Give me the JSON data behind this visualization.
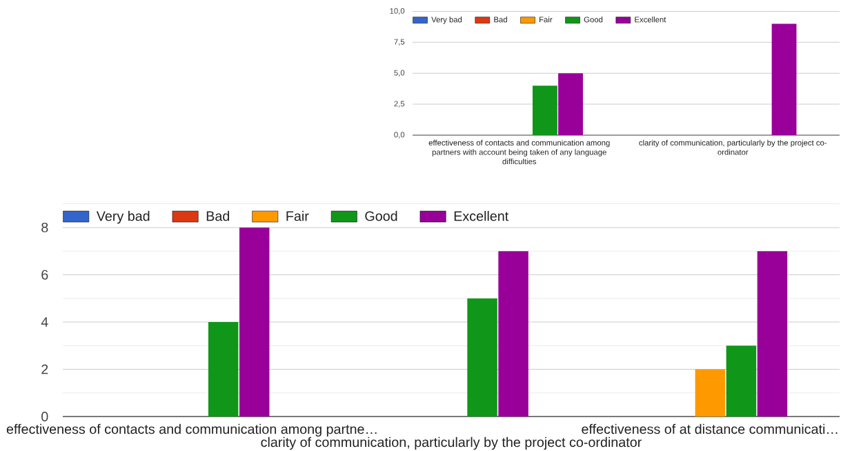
{
  "chart_data": [
    {
      "type": "bar",
      "categories": [
        "effectiveness of contacts and communication among partners with account being taken of any language difficulties",
        "clarity of communication, particularly by the project co-ordinator"
      ],
      "series": [
        {
          "name": "Very bad",
          "color": "#3366cc",
          "values": [
            0,
            0
          ]
        },
        {
          "name": "Bad",
          "color": "#dc3912",
          "values": [
            0,
            0
          ]
        },
        {
          "name": "Fair",
          "color": "#ff9900",
          "values": [
            0,
            0
          ]
        },
        {
          "name": "Good",
          "color": "#109618",
          "values": [
            4,
            0
          ]
        },
        {
          "name": "Excellent",
          "color": "#990099",
          "values": [
            5,
            9
          ]
        }
      ],
      "ylim": [
        0,
        10
      ],
      "yticks": [
        {
          "value": 0,
          "label": "0,0"
        },
        {
          "value": 2.5,
          "label": "2,5"
        },
        {
          "value": 5,
          "label": "5,0"
        },
        {
          "value": 7.5,
          "label": "7,5"
        },
        {
          "value": 10,
          "label": "10,0"
        }
      ],
      "grid": "y",
      "legend": "top left"
    },
    {
      "type": "bar",
      "categories": [
        "effectiveness of contacts and communication among partne…",
        "clarity of communication, particularly by the project co-ordinator",
        "effectiveness of at distance communicati…"
      ],
      "series": [
        {
          "name": "Very bad",
          "color": "#3366cc",
          "values": [
            0,
            0,
            0
          ]
        },
        {
          "name": "Bad",
          "color": "#dc3912",
          "values": [
            0,
            0,
            0
          ]
        },
        {
          "name": "Fair",
          "color": "#ff9900",
          "values": [
            0,
            0,
            2
          ]
        },
        {
          "name": "Good",
          "color": "#109618",
          "values": [
            4,
            5,
            3
          ]
        },
        {
          "name": "Excellent",
          "color": "#990099",
          "values": [
            8,
            7,
            7
          ]
        }
      ],
      "ylim": [
        0,
        9
      ],
      "yticks": [
        0,
        {
          "value": 1,
          "label": null
        },
        2,
        {
          "value": 3,
          "label": null
        },
        4,
        {
          "value": 5,
          "label": null
        },
        6,
        {
          "value": 7,
          "label": null
        },
        8,
        {
          "value": 9,
          "label": null
        }
      ],
      "grid": "y",
      "legend": "top left"
    }
  ]
}
